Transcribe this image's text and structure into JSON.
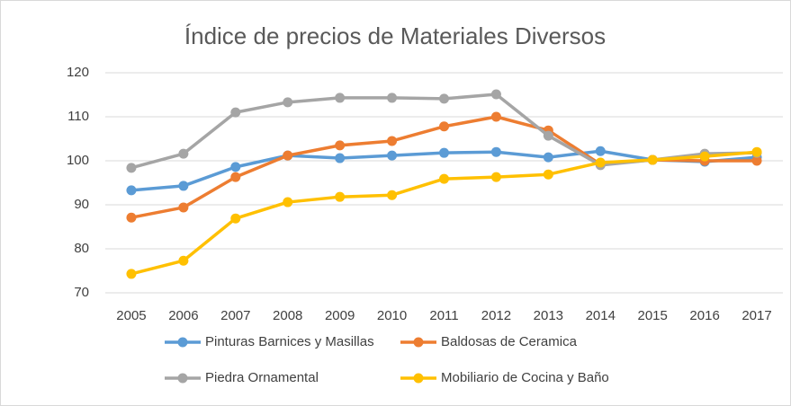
{
  "chart_data": {
    "type": "line",
    "title": "Índice de precios de Materiales Diversos",
    "categories": [
      "2005",
      "2006",
      "2007",
      "2008",
      "2009",
      "2010",
      "2011",
      "2012",
      "2013",
      "2014",
      "2015",
      "2016",
      "2017"
    ],
    "series": [
      {
        "name": "Pinturas Barnices y Masillas",
        "color": "#5b9bd5",
        "values": [
          93.3,
          94.3,
          98.6,
          101.2,
          100.6,
          101.2,
          101.8,
          102.0,
          100.8,
          102.2,
          100.2,
          99.8,
          100.8
        ]
      },
      {
        "name": "Baldosas de Ceramica",
        "color": "#ed7d31",
        "values": [
          87.1,
          89.4,
          96.3,
          101.2,
          103.5,
          104.5,
          107.8,
          110.0,
          106.9,
          99.2,
          100.2,
          100.0,
          100.0
        ]
      },
      {
        "name": "Piedra Ornamental",
        "color": "#a5a5a5",
        "values": [
          98.4,
          101.6,
          111.0,
          113.3,
          114.3,
          114.3,
          114.1,
          115.1,
          105.7,
          99.0,
          100.2,
          101.6,
          101.8
        ]
      },
      {
        "name": "Mobiliario de Cocina y Baño",
        "color": "#ffc000",
        "values": [
          74.3,
          77.3,
          86.9,
          90.6,
          91.8,
          92.2,
          95.9,
          96.3,
          96.9,
          99.6,
          100.2,
          101.0,
          102.0
        ]
      }
    ],
    "ylim": [
      70,
      120
    ],
    "yticks": [
      70,
      80,
      90,
      100,
      110,
      120
    ],
    "grid": true
  }
}
